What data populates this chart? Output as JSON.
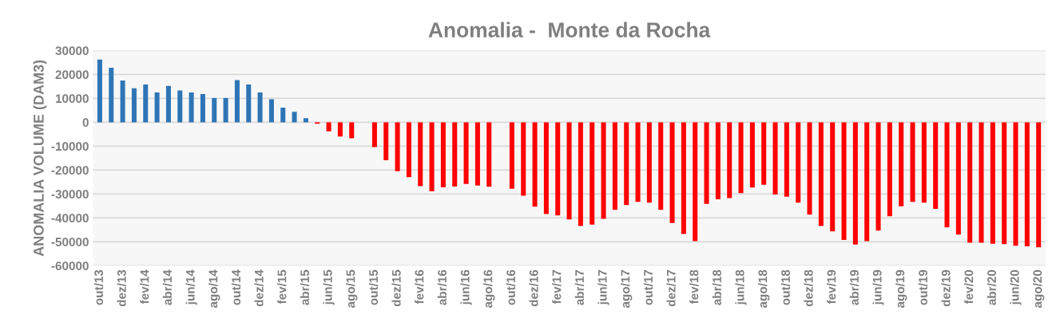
{
  "chart_data": {
    "type": "bar",
    "title": "Anomalia -  Monte da Rocha",
    "ylabel": "ANOMALIA VOLUME (DAM3)",
    "categories": [
      "out/13",
      null,
      "dez/13",
      null,
      "fev/14",
      null,
      "abr/14",
      null,
      "jun/14",
      null,
      "ago/14",
      null,
      "out/14",
      null,
      "dez/14",
      null,
      "fev/15",
      null,
      "abr/15",
      null,
      "jun/15",
      null,
      "ago/15",
      null,
      "out/15",
      null,
      "dez/15",
      null,
      "fev/16",
      null,
      "abr/16",
      null,
      "jun/16",
      null,
      "ago/16",
      null,
      "out/16",
      null,
      "dez/16",
      null,
      "fev/17",
      null,
      "abr/17",
      null,
      "jun/17",
      null,
      "ago/17",
      null,
      "out/17",
      null,
      "dez/17",
      null,
      "fev/18",
      null,
      "abr/18",
      null,
      "jun/18",
      null,
      "ago/18",
      null,
      "out/18",
      null,
      "dez/18",
      null,
      "fev/19",
      null,
      "abr/19",
      null,
      "jun/19",
      null,
      "ago/19",
      null,
      "out/19",
      null,
      "dez/19",
      null,
      "fev/20",
      null,
      "abr/20",
      null,
      "jun/20",
      null,
      "ago/20"
    ],
    "values": [
      26200,
      22800,
      17500,
      14200,
      15800,
      12500,
      15200,
      13300,
      12500,
      11800,
      10100,
      10100,
      17600,
      15800,
      12500,
      9600,
      6100,
      4400,
      1700,
      -600,
      -3800,
      -6000,
      -6700,
      null,
      -10400,
      -15900,
      -20500,
      -23000,
      -26700,
      -28900,
      -27200,
      -26900,
      -25800,
      -26500,
      -27000,
      null,
      -27800,
      -30700,
      -35300,
      -38400,
      -39000,
      -40600,
      -43400,
      -42800,
      -40400,
      -36600,
      -34600,
      -33300,
      -33600,
      -36600,
      -42100,
      -46700,
      -49700,
      -34100,
      -32200,
      -31700,
      -29600,
      -27300,
      -26100,
      -30200,
      -31100,
      -33600,
      -38600,
      -43400,
      -45600,
      -49200,
      -51100,
      -49700,
      -45300,
      -39300,
      -35100,
      -33300,
      -33600,
      -36200,
      -44000,
      -47000,
      -50400,
      -50400,
      -50800,
      -51000,
      -51600,
      -51900,
      -52300
    ],
    "colors": [
      "#2e75b6",
      "#2e75b6",
      "#2e75b6",
      "#2e75b6",
      "#2e75b6",
      "#2e75b6",
      "#2e75b6",
      "#2e75b6",
      "#2e75b6",
      "#2e75b6",
      "#2e75b6",
      "#2e75b6",
      "#2e75b6",
      "#2e75b6",
      "#2e75b6",
      "#2e75b6",
      "#2e75b6",
      "#2e75b6",
      "#2e75b6",
      "#ff0000",
      "#ff0000",
      "#ff0000",
      "#ff0000",
      "#ff0000",
      "#ff0000",
      "#ff0000",
      "#ff0000",
      "#ff0000",
      "#ff0000",
      "#ff0000",
      "#ff0000",
      "#ff0000",
      "#ff0000",
      "#ff0000",
      "#ff0000",
      "#ff0000",
      "#ff0000",
      "#ff0000",
      "#ff0000",
      "#ff0000",
      "#ff0000",
      "#ff0000",
      "#ff0000",
      "#ff0000",
      "#ff0000",
      "#ff0000",
      "#ff0000",
      "#ff0000",
      "#ff0000",
      "#ff0000",
      "#ff0000",
      "#ff0000",
      "#ff0000",
      "#ff0000",
      "#ff0000",
      "#ff0000",
      "#ff0000",
      "#ff0000",
      "#ff0000",
      "#ff0000",
      "#ff0000",
      "#ff0000",
      "#ff0000",
      "#ff0000",
      "#ff0000",
      "#ff0000",
      "#ff0000",
      "#ff0000",
      "#ff0000",
      "#ff0000",
      "#ff0000",
      "#ff0000",
      "#ff0000",
      "#ff0000",
      "#ff0000",
      "#ff0000",
      "#ff0000",
      "#ff0000",
      "#ff0000",
      "#ff0000",
      "#ff0000",
      "#ff0000",
      "#ff0000"
    ],
    "ylim": [
      -60000,
      30000
    ],
    "yticks": [
      -60000,
      -50000,
      -40000,
      -30000,
      -20000,
      -10000,
      0,
      10000,
      20000,
      30000
    ],
    "grid": "y",
    "legend": false
  }
}
